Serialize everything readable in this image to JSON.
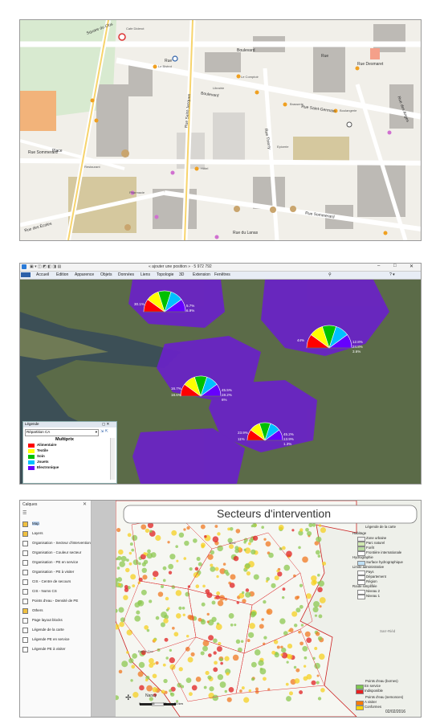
{
  "panel1": {
    "streets": [
      "Square du Clos",
      "Rue",
      "Place",
      "Boulevard",
      "Rue Saint-Germain",
      "Boulevard",
      "Rue Desmaret",
      "Rue Thierry",
      "Rue des Anges",
      "Rue Sommerard",
      "Rue Sommerard",
      "Rue du Lanas",
      "Rue des Écoles",
      "Rue",
      "Rue Saint-Jacques"
    ],
    "pois": [
      "Cafe Diderot",
      "Le Bistrot",
      "Librairie",
      "Le Comptoir",
      "Brasserie",
      "Hôtel",
      "Pharmacie",
      "Boulangerie",
      "Restaurant",
      "Epicerie"
    ]
  },
  "panel2": {
    "title_text": "« ajouter une position » · 5 972 792",
    "menu": [
      "Accueil",
      "Edition",
      "Apparence",
      "Objets",
      "Données",
      "Liens",
      "Topologie",
      "3D",
      "Extension",
      "Fenêtres"
    ],
    "legend": {
      "title": "Légende",
      "dropdown": "Répartition CA",
      "heading": "Multiprix",
      "items": [
        {
          "label": "Alimentaire",
          "color": "#ff0000"
        },
        {
          "label": "Textile",
          "color": "#ffff00"
        },
        {
          "label": "Soin",
          "color": "#00c000"
        },
        {
          "label": "Jouets",
          "color": "#00c0ff"
        },
        {
          "label": "Electronique",
          "color": "#6600ff"
        }
      ]
    },
    "pies": [
      {
        "labels": [
          "30.1%",
          "5.7%",
          "6.9%"
        ]
      },
      {
        "labels": [
          "44%",
          "12.8%",
          "24.8%",
          "3.6%"
        ]
      },
      {
        "labels": [
          "16.7%",
          "45.5%",
          "19.2%",
          "6%",
          "18.6%"
        ]
      },
      {
        "labels": [
          "23.9%",
          "45.2%",
          "13.9%",
          "1.3%",
          "11%"
        ]
      },
      {
        "labels": [
          "25.4%",
          "39.1%",
          "30.3%",
          "3.2%",
          "16.7%"
        ]
      }
    ]
  },
  "panel3": {
    "layers_title": "Calques",
    "layers": [
      {
        "label": "Map",
        "icon": "folder"
      },
      {
        "label": "Layers",
        "icon": "folder"
      },
      {
        "label": "Organisation - Secteur d'intervention",
        "icon": "check"
      },
      {
        "label": "Organisation - Couleur secteur",
        "icon": "check"
      },
      {
        "label": "Organisation - PE en service",
        "icon": "check"
      },
      {
        "label": "Organisation - PE à visiter",
        "icon": "check"
      },
      {
        "label": "CIS - Centre de secours",
        "icon": "check"
      },
      {
        "label": "CIS - Noms CS",
        "icon": "check"
      },
      {
        "label": "Points d'eau - Densité de PE",
        "icon": "check"
      },
      {
        "label": "Others",
        "icon": "folder"
      },
      {
        "label": "Page layout blocks",
        "icon": "check"
      },
      {
        "label": "Légende de la carte",
        "icon": "check"
      },
      {
        "label": "Légende PE en service",
        "icon": "check"
      },
      {
        "label": "Légende PE à visiter",
        "icon": "check"
      }
    ],
    "map_title": "Secteurs d'intervention",
    "map_legend": {
      "title": "Légende de la carte",
      "groups": [
        {
          "heading": "Habitage",
          "items": [
            "Zone urbaine",
            "Parc naturel",
            "Forêt",
            "Frontière internationale"
          ]
        },
        {
          "heading": "Hydrographie",
          "items": [
            "Surface hydrographique"
          ]
        },
        {
          "heading": "Limite administrative",
          "items": [
            "Pays",
            "Département",
            "Région"
          ]
        },
        {
          "heading": "Route simplifiée",
          "items": [
            "Niveau 2",
            "Niveau 1"
          ]
        }
      ]
    },
    "pe_service": {
      "title": "Points d'eau (bornes)",
      "items": [
        {
          "label": "En service",
          "color": "#7ec850"
        },
        {
          "label": "Indisponible",
          "color": "#e82020"
        }
      ]
    },
    "pe_visit": {
      "title": "Points d'eau (semonces)",
      "items": [
        {
          "label": "A visiter",
          "color": "#ff7a00"
        },
        {
          "label": "Conformes",
          "color": "#ffd400"
        }
      ]
    },
    "city_labels": [
      "Nancy",
      "Bar-le-Duc",
      "Metz",
      "Sarr-Riéd"
    ],
    "scale": [
      "0",
      "16",
      "33",
      "50 km"
    ],
    "date": "02/02/2016"
  }
}
